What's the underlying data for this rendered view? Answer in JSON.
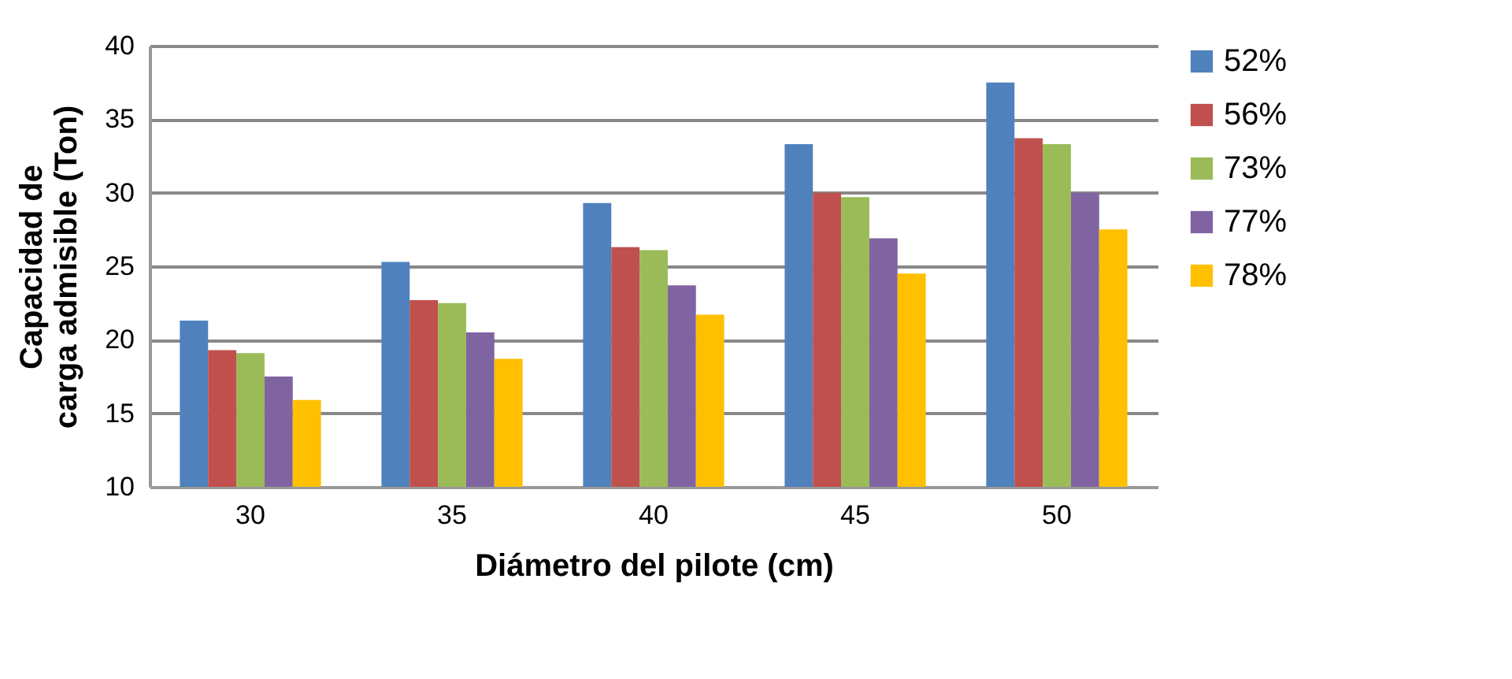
{
  "chart_data": {
    "type": "bar",
    "xlabel": "Diámetro del pilote (cm)",
    "ylabel": "Capacidad de\ncarga admisible (Ton)",
    "categories": [
      "30",
      "35",
      "40",
      "45",
      "50"
    ],
    "series": [
      {
        "name": "52%",
        "color": "#4f81bd",
        "values": [
          21.3,
          25.3,
          29.3,
          33.3,
          37.5
        ]
      },
      {
        "name": "56%",
        "color": "#c0504d",
        "values": [
          19.3,
          22.7,
          26.3,
          30.0,
          33.7
        ]
      },
      {
        "name": "73%",
        "color": "#9bbb59",
        "values": [
          19.1,
          22.5,
          26.1,
          29.7,
          33.3
        ]
      },
      {
        "name": "77%",
        "color": "#8064a2",
        "values": [
          17.5,
          20.5,
          23.7,
          26.9,
          30.0
        ]
      },
      {
        "name": "78%",
        "color": "#ffc000",
        "values": [
          15.9,
          18.7,
          21.7,
          24.5,
          27.5
        ]
      }
    ],
    "ylim": [
      10,
      40
    ],
    "yticks": [
      10,
      15,
      20,
      25,
      30,
      35,
      40
    ],
    "grid": "y",
    "legend": "right"
  }
}
